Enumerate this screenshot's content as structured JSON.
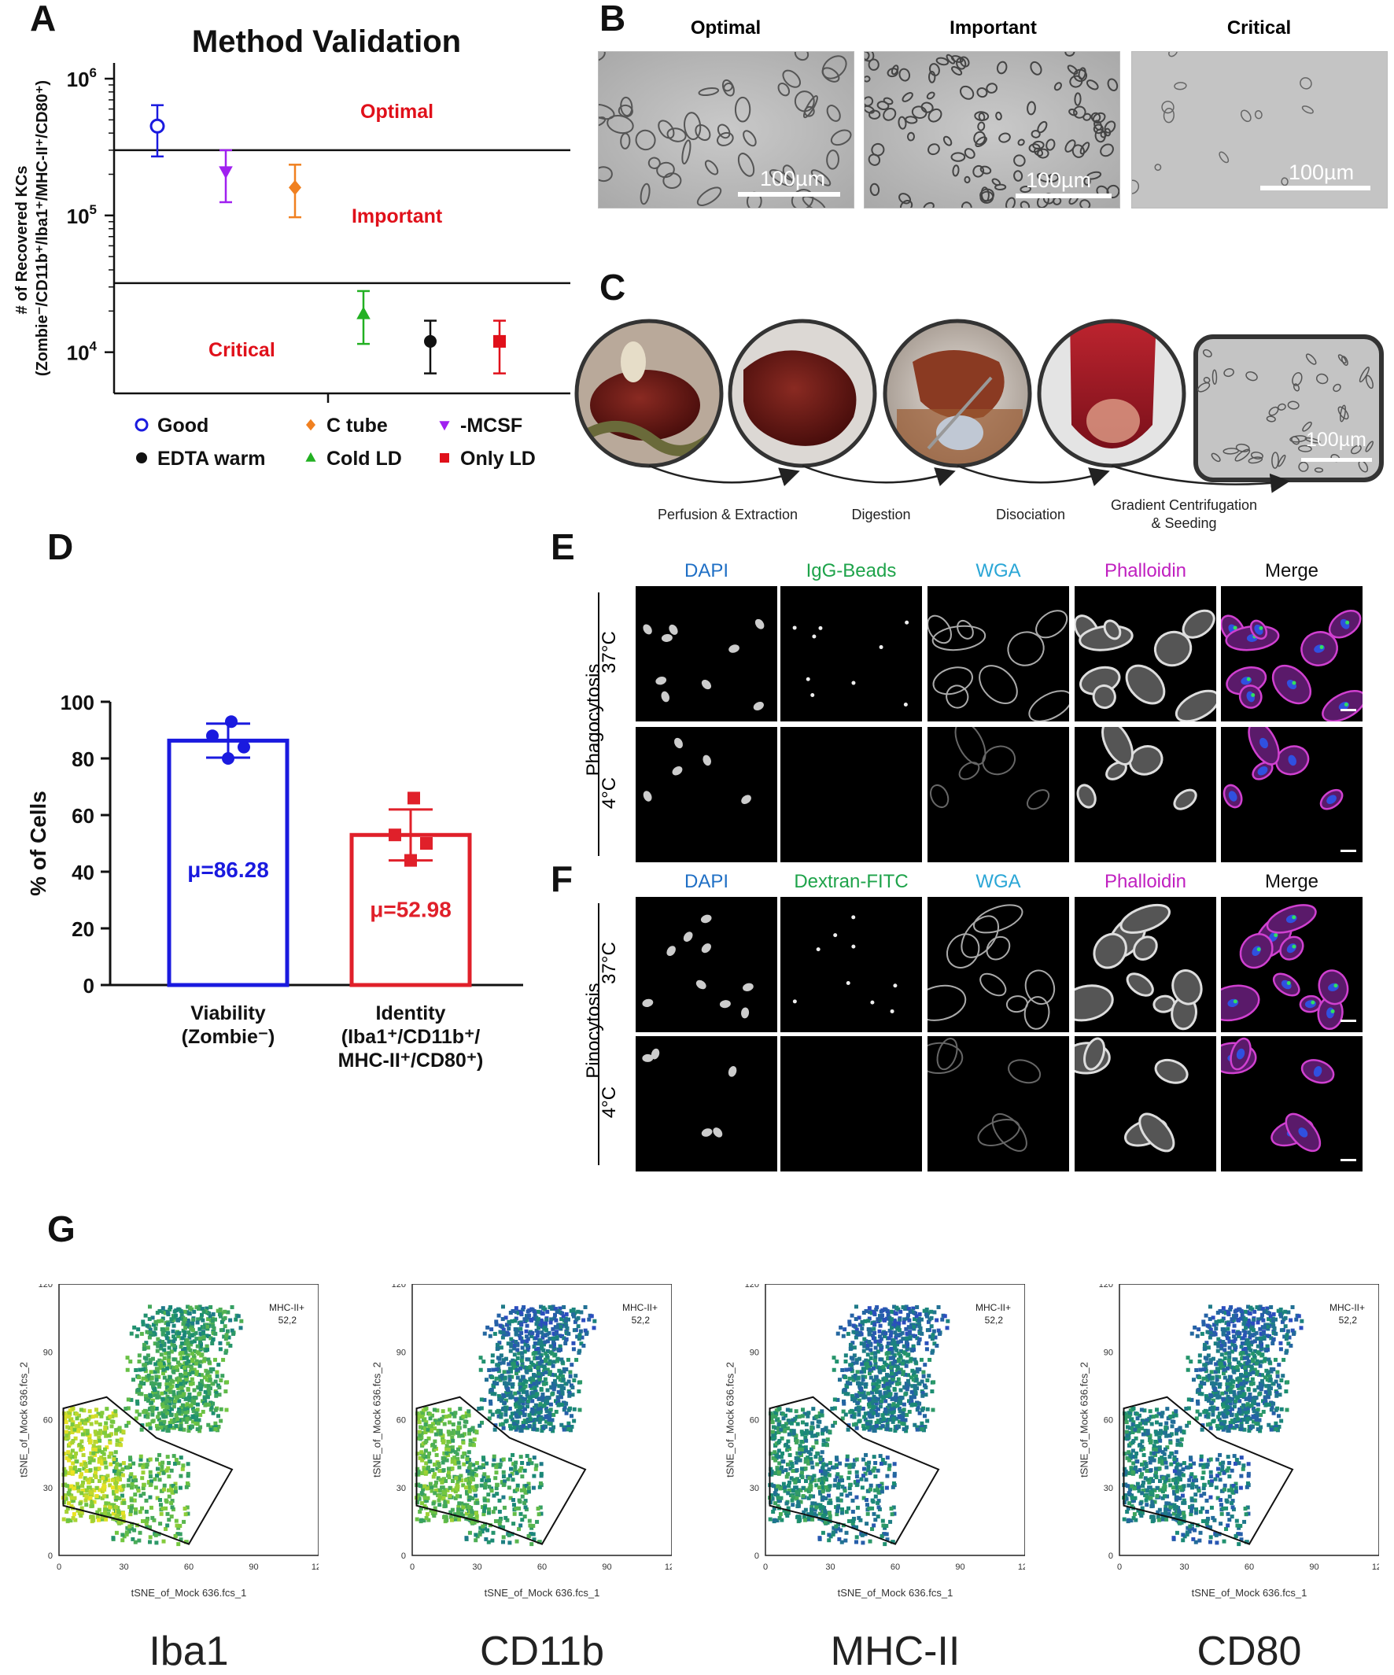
{
  "panels": {
    "A": "A",
    "B": "B",
    "C": "C",
    "D": "D",
    "E": "E",
    "F": "F",
    "G": "G"
  },
  "chart_a": {
    "type": "scatter",
    "title": "Method Validation",
    "ylabel_line1": "# of Recovered KCs",
    "ylabel_line2": "(Zombie⁻/CD11b⁺/Iba1⁺/MHC-II⁺/CD80⁺)",
    "yscale": "log",
    "ylim": [
      5000,
      1000000
    ],
    "ticks": [
      {
        "label": "10",
        "sup": "6",
        "value": 1000000
      },
      {
        "label": "10",
        "sup": "5",
        "value": 100000
      },
      {
        "label": "10",
        "sup": "4",
        "value": 10000
      }
    ],
    "thresholds": [
      300000,
      32000
    ],
    "zones": [
      {
        "label": "Optimal",
        "value": 580000,
        "x": 0.62
      },
      {
        "label": "Important",
        "value": 100000,
        "x": 0.62
      },
      {
        "label": "Critical",
        "value": 10500,
        "x": 0.28
      }
    ],
    "series": [
      {
        "name": "Good",
        "x": 1,
        "y": 450000,
        "low": 270000,
        "high": 640000,
        "color": "#1a1adf",
        "marker": "open-circle"
      },
      {
        "name": "-MCSF",
        "x": 2,
        "y": 210000,
        "low": 125000,
        "high": 300000,
        "color": "#a020f0",
        "marker": "triangle-down"
      },
      {
        "name": "C tube",
        "x": 3,
        "y": 160000,
        "low": 97000,
        "high": 235000,
        "color": "#f08020",
        "marker": "diamond"
      },
      {
        "name": "Cold LD",
        "x": 4,
        "y": 19000,
        "low": 11500,
        "high": 28000,
        "color": "#22b022",
        "marker": "triangle-up"
      },
      {
        "name": "EDTA warm",
        "x": 5,
        "y": 12000,
        "low": 7000,
        "high": 17000,
        "color": "#111111",
        "marker": "circle"
      },
      {
        "name": "Only LD",
        "x": 6,
        "y": 12000,
        "low": 7000,
        "high": 17000,
        "color": "#e0101a",
        "marker": "square"
      }
    ],
    "legend": [
      "Good",
      "C tube",
      "-MCSF",
      "EDTA warm",
      "Cold LD",
      "Only LD"
    ]
  },
  "panel_b": {
    "labels": [
      "Optimal",
      "Important",
      "Critical"
    ],
    "scale": "100µm"
  },
  "panel_c": {
    "steps": [
      "Perfusion & Extraction",
      "Digestion",
      "Disociation",
      "Gradient Centrifugation",
      "& Seeding"
    ],
    "scale": "100µm"
  },
  "chart_d": {
    "type": "bar",
    "ylabel": "% of Cells",
    "ylim": [
      0,
      100
    ],
    "yticks": [
      0,
      20,
      40,
      60,
      80,
      100
    ],
    "categories": [
      {
        "line1": "Viability",
        "line2": "(Zombie⁻)",
        "line3": ""
      },
      {
        "line1": "Identity",
        "line2": "(Iba1⁺/CD11b⁺/",
        "line3": "MHC-II⁺/CD80⁺)"
      }
    ],
    "series": [
      {
        "value": 86.28,
        "sd": 6,
        "color": "#1a1adf",
        "label": "μ=86.28",
        "points": [
          93,
          88,
          84,
          80
        ]
      },
      {
        "value": 52.98,
        "sd": 9,
        "color": "#e0202a",
        "label": "μ=52.98",
        "points": [
          66,
          53,
          50,
          44
        ]
      }
    ]
  },
  "panel_e": {
    "channels": [
      {
        "name": "DAPI",
        "color": "#1f6fc5"
      },
      {
        "name": "IgG-Beads",
        "color": "#1ea34a"
      },
      {
        "name": "WGA",
        "color": "#2aa6d6"
      },
      {
        "name": "Phalloidin",
        "color": "#c020c0"
      },
      {
        "name": "Merge",
        "color": "#111111"
      }
    ],
    "assay": "Phagocytosis",
    "rows": [
      "37°C",
      "4°C"
    ]
  },
  "panel_f": {
    "channels": [
      {
        "name": "DAPI",
        "color": "#1f6fc5"
      },
      {
        "name": "Dextran-FITC",
        "color": "#1ea34a"
      },
      {
        "name": "WGA",
        "color": "#2aa6d6"
      },
      {
        "name": "Phalloidin",
        "color": "#c020c0"
      },
      {
        "name": "Merge",
        "color": "#111111"
      }
    ],
    "assay": "Pinocytosis",
    "rows": [
      "37°C",
      "4°C"
    ]
  },
  "panel_g": {
    "xlabel": "tSNE_of_Mock 636.fcs_1",
    "ylabel": "tSNE_of_Mock 636.fcs_2",
    "ticks": [
      "0",
      "30",
      "60",
      "90",
      "120"
    ],
    "gate_name": "MHC-II+",
    "gate_value": "52,2",
    "plots": [
      {
        "marker": "Iba1",
        "high_level": 0.8
      },
      {
        "marker": "CD11b",
        "high_level": 0.6
      },
      {
        "marker": "MHC-II",
        "high_level": 0.35
      },
      {
        "marker": "CD80",
        "high_level": 0.3
      }
    ]
  }
}
